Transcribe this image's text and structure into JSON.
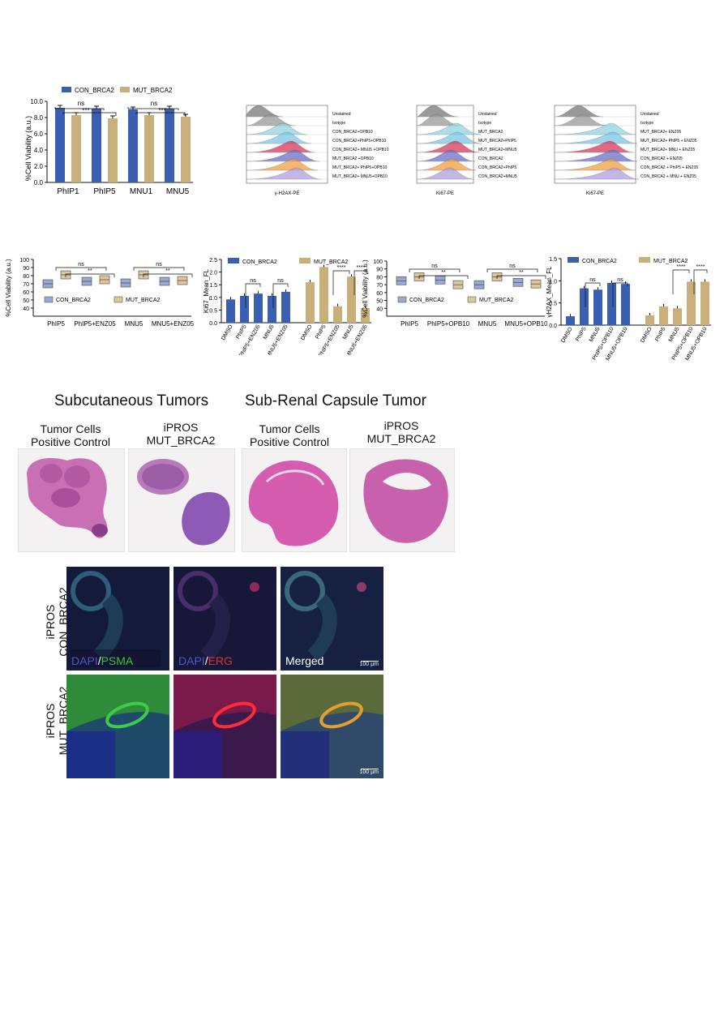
{
  "colors": {
    "con": "#3a5fb0",
    "mut": "#c9b07a",
    "box_con": "#9aa8d6",
    "box_mut": "#dcc79a"
  },
  "panelA": {
    "legend": [
      "CON_BRCA2",
      "MUT_BRCA2"
    ],
    "ylabel": "%Cell Viability (a.u.)",
    "ticks": [
      "0.0",
      "2.0",
      "4.0",
      "6.0",
      "8.0",
      "10.0"
    ],
    "sig": [
      "ns",
      "***",
      "ns",
      "***"
    ]
  },
  "flow1": {
    "xlabel": "γ-H2AX-PE",
    "labels": [
      "Unstained",
      "Isotype",
      "CON_BRCA2+OPB10",
      "CON_BRCA2+PhIP5+OPB10",
      "CON_BRCA2+ MNU5 +OPB10",
      "MUT_BRCA2 +OPB10",
      "MUT_BRCA2+ PhIP5+OPB10",
      "MUT_BRCA2+ MNU5+OPB10"
    ]
  },
  "flow2": {
    "xlabel": "Ki67-PE",
    "labels": [
      "Unstained",
      "Isotype",
      "MUT_BRCA2",
      "MUT_BRCA2+PhIP5",
      "MUT_BRCA2+MNU5",
      "CON_BRCA2",
      "CON_BRCA2+PhIP5",
      "CON_BRCA2+MNU5"
    ]
  },
  "flow3": {
    "xlabel": "Ki67-PE",
    "labels": [
      "Unstained",
      "Isotype",
      "MUT_BRCA2+ ENZ05",
      "MUT_BRCA2+ PhIP5 + ENZ05",
      "MUT_BRCA2+ MNU + ENZ05",
      "CON_BRCA2 + ENZ05",
      "CON_BRCA2 + PhIP5 + ENZ05",
      "CON_BRCA2 + MNU + ENZ05"
    ]
  },
  "panelB": {
    "ylabel": "%Cell Viability (a.u.)",
    "legend": [
      "CON_BRCA2",
      "MUT_BRCA2"
    ],
    "xticks": [
      "PhIP5",
      "PhIP5+ENZ05",
      "MNU5",
      "MNU5+ENZ05"
    ],
    "sig": [
      "ns",
      "**",
      "ns",
      "**"
    ]
  },
  "panelC": {
    "ylabel": "Ki67_Mean_FL",
    "legend": [
      "CON_BRCA2",
      "MUT_BRCA2"
    ],
    "sig": [
      "ns",
      "ns",
      "****",
      "****"
    ]
  },
  "panelD": {
    "ylabel": "%Cell Viability (a.u.)",
    "legend": [
      "CON_BRCA2",
      "MUT_BRCA2"
    ],
    "xticks": [
      "PhIP5",
      "PhIP5+OPB10",
      "MNU5",
      "MNU5+OPB10"
    ],
    "sig": [
      "ns",
      "**",
      "ns",
      "**"
    ]
  },
  "panelE": {
    "ylabel": "γH2AX_Mean_FL",
    "legend": [
      "CON_BRCA2",
      "MUT_BRCA2"
    ],
    "sig": [
      "ns",
      "ns",
      "****",
      "****"
    ]
  },
  "tumors": {
    "title_left": "Subcutaneous Tumors",
    "title_right": "Sub-Renal Capsule Tumor",
    "captions": [
      "Tumor Cells\nPositive Control",
      "iPROS\nMUT_BRCA2",
      "Tumor Cells\nPositive Control",
      "iPROS\nMUT_BRCA2"
    ]
  },
  "if": {
    "row1": "iPROS\nCON_BRCA2",
    "row2": "iPROS\nMUT_BRCA2",
    "scale": "100 µm",
    "dapi": "DAPI",
    "psma": "PSMA",
    "erg": "ERG",
    "merged": "Merged"
  },
  "chart_data": [
    {
      "type": "bar",
      "title": "",
      "ylabel": "%Cell Viability (a.u.)",
      "ylim": [
        0,
        10
      ],
      "categories": [
        "PhIP1",
        "PhIP5",
        "MNU1",
        "MNU5"
      ],
      "series": [
        {
          "name": "CON_BRCA2",
          "values": [
            9.2,
            9.1,
            9.0,
            9.1
          ]
        },
        {
          "name": "MUT_BRCA2",
          "values": [
            8.3,
            7.9,
            8.3,
            8.1
          ]
        }
      ]
    },
    {
      "type": "box",
      "ylabel": "%Cell Viability (a.u.)",
      "ylim": [
        0,
        100
      ],
      "categories": [
        "PhIP5",
        "PhIP5+ENZ05",
        "MNU5",
        "MNU5+ENZ05"
      ],
      "series": [
        {
          "name": "CON_BRCA2",
          "values": [
            70,
            73,
            71,
            73
          ]
        },
        {
          "name": "MUT_BRCA2",
          "values": [
            81,
            75,
            81,
            74
          ]
        }
      ]
    },
    {
      "type": "bar",
      "ylabel": "Ki67_Mean_FL",
      "ylim": [
        0,
        2.5
      ],
      "categories": [
        "DMSO",
        "PhIP5",
        "PhIP5+ENZ05",
        "MNU5",
        "MNU5+ENZ05"
      ],
      "series": [
        {
          "name": "CON_BRCA2",
          "values": [
            0.92,
            1.06,
            1.15,
            1.06,
            1.22
          ]
        },
        {
          "name": "MUT_BRCA2",
          "values": [
            1.6,
            2.2,
            0.65,
            1.82,
            0.58
          ]
        }
      ]
    },
    {
      "type": "box",
      "ylabel": "%Cell Viability (a.u.)",
      "ylim": [
        0,
        100
      ],
      "categories": [
        "PhIP5",
        "PhIP5+OPB10",
        "MNU5",
        "MNU5+OPB10"
      ],
      "series": [
        {
          "name": "CON_BRCA2",
          "values": [
            75,
            76,
            70,
            73
          ]
        },
        {
          "name": "MUT_BRCA2",
          "values": [
            80,
            70,
            80,
            71
          ]
        }
      ]
    },
    {
      "type": "bar",
      "ylabel": "γH2AX_Mean_FL",
      "ylim": [
        0,
        1.5
      ],
      "categories": [
        "DMSO",
        "PhIP5",
        "MNU5",
        "PhIP5+OPB10",
        "MNU5+OPB10"
      ],
      "series": [
        {
          "name": "CON_BRCA2",
          "values": [
            0.2,
            0.83,
            0.8,
            0.95,
            0.93
          ]
        },
        {
          "name": "MUT_BRCA2",
          "values": [
            0.22,
            0.42,
            0.38,
            0.98,
            0.98
          ]
        }
      ]
    }
  ]
}
